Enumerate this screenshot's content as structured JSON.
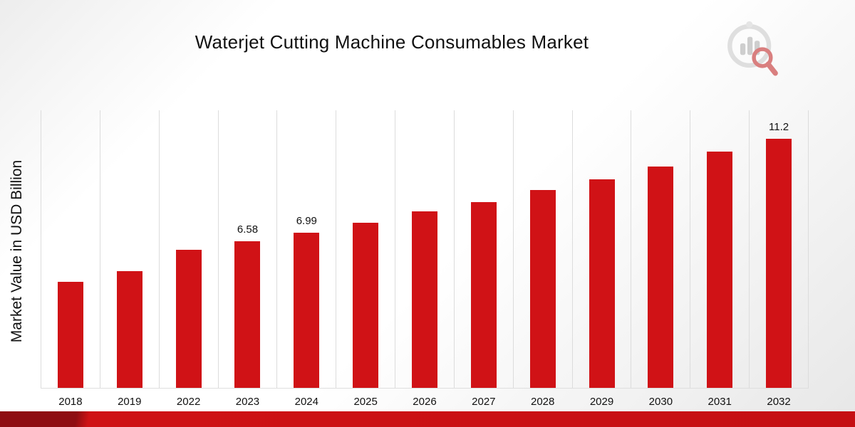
{
  "chart_data": {
    "type": "bar",
    "title": "Waterjet Cutting Machine Consumables Market",
    "ylabel": "Market Value in USD Billion",
    "xlabel": "",
    "categories": [
      "2018",
      "2019",
      "2022",
      "2023",
      "2024",
      "2025",
      "2026",
      "2027",
      "2028",
      "2029",
      "2030",
      "2031",
      "2032"
    ],
    "values": [
      4.77,
      5.25,
      6.2,
      6.58,
      6.99,
      7.42,
      7.94,
      8.35,
      8.9,
      9.38,
      9.95,
      10.62,
      11.2
    ],
    "data_labels": [
      "",
      "",
      "",
      "6.58",
      "6.99",
      "",
      "",
      "",
      "",
      "",
      "",
      "",
      "11.2"
    ],
    "ylim": [
      0,
      12.48
    ],
    "grid": "vertical",
    "bar_color": "#d01216",
    "gridline_color": "#dcdcdc",
    "label_color": "#111111",
    "legend": "none"
  },
  "branding": {
    "logo_name": "market-research-chart-logo",
    "accent_color": "#c50f13"
  }
}
